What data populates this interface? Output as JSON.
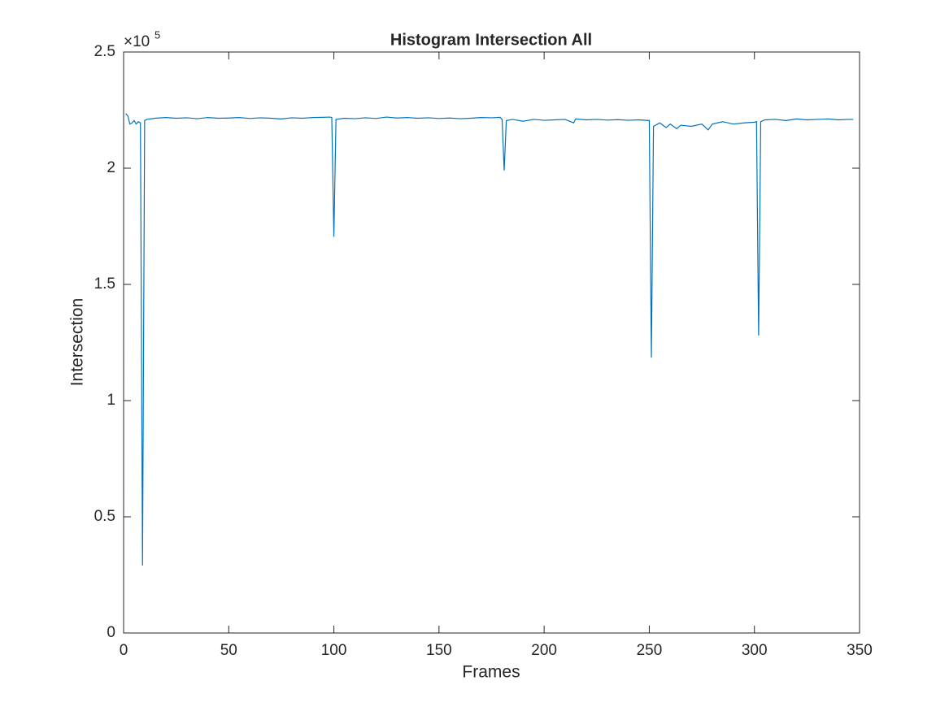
{
  "chart_data": {
    "type": "line",
    "title": "Histogram Intersection All",
    "x_label": "Frames",
    "y_label": "Intersection",
    "y_multiplier": {
      "base": "×10",
      "exponent": "5"
    },
    "xlim": [
      0,
      350
    ],
    "xticks": [
      0,
      50,
      100,
      150,
      200,
      250,
      300,
      350
    ],
    "ylim": [
      0,
      250000
    ],
    "yticks": [
      0,
      {
        "value": 50000,
        "label": "0.5"
      },
      {
        "value": 100000,
        "label": "1"
      },
      {
        "value": 150000,
        "label": "1.5"
      },
      {
        "value": 200000,
        "label": "2"
      },
      {
        "value": 250000,
        "label": "2.5"
      }
    ],
    "grid": false,
    "series": [
      {
        "color": "#0072bd",
        "x": [
          1,
          2,
          3,
          4,
          5,
          6,
          7,
          8,
          9,
          10,
          11,
          15,
          20,
          25,
          30,
          35,
          40,
          45,
          50,
          55,
          60,
          65,
          70,
          75,
          80,
          85,
          90,
          95,
          98,
          99,
          100,
          101,
          105,
          110,
          115,
          120,
          125,
          130,
          135,
          140,
          145,
          150,
          155,
          160,
          165,
          170,
          175,
          179,
          180,
          181,
          182,
          185,
          190,
          195,
          200,
          205,
          210,
          214,
          215,
          220,
          225,
          230,
          235,
          240,
          245,
          250,
          251,
          252,
          255,
          258,
          260,
          263,
          265,
          270,
          275,
          278,
          280,
          285,
          290,
          295,
          300,
          301,
          302,
          303,
          305,
          310,
          315,
          320,
          325,
          330,
          335,
          340,
          345,
          347
        ],
        "values": [
          223500,
          222500,
          219000,
          219500,
          220500,
          219000,
          220000,
          219500,
          29000,
          220500,
          221000,
          221500,
          221800,
          221500,
          221700,
          221300,
          221800,
          221500,
          221600,
          221800,
          221400,
          221700,
          221500,
          221200,
          221700,
          221500,
          221800,
          221900,
          222000,
          221800,
          170500,
          221000,
          221500,
          221300,
          221700,
          221400,
          222000,
          221600,
          221800,
          221500,
          221700,
          221400,
          221600,
          221300,
          221500,
          221800,
          221700,
          221900,
          221000,
          199000,
          220500,
          221000,
          220200,
          221000,
          220600,
          220800,
          221000,
          219500,
          221200,
          220800,
          221000,
          220700,
          220900,
          220600,
          220800,
          220500,
          118500,
          218000,
          219500,
          217500,
          219000,
          217000,
          218500,
          218000,
          219000,
          216500,
          219000,
          220000,
          219000,
          219500,
          219800,
          220000,
          128000,
          220000,
          220800,
          221000,
          220500,
          221200,
          220800,
          221000,
          221200,
          220800,
          221000,
          221000
        ]
      }
    ]
  }
}
